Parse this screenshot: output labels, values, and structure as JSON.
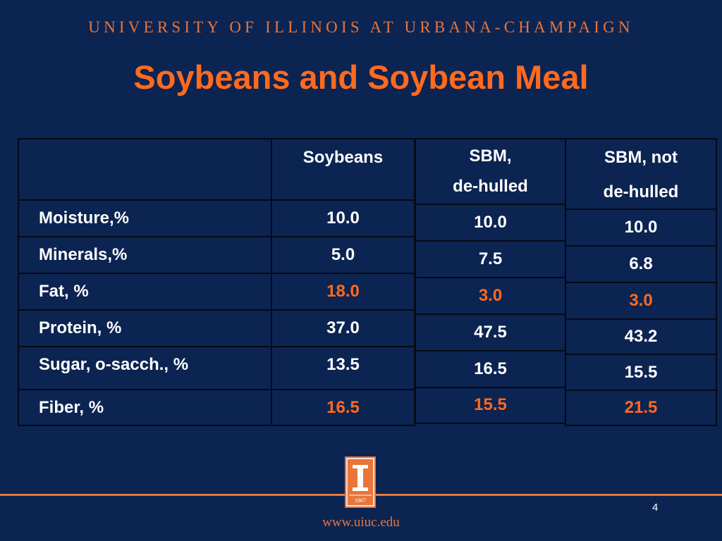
{
  "header": {
    "university": "UNIVERSITY OF ILLINOIS AT URBANA-CHAMPAIGN"
  },
  "slide": {
    "title": "Soybeans and Soybean Meal",
    "page_number": "4"
  },
  "table1": {
    "header": [
      "",
      "Soybeans"
    ],
    "rows": [
      [
        "Moisture,%",
        "10.0"
      ],
      [
        "Minerals,%",
        "5.0"
      ],
      [
        "Fat, %",
        "18.0"
      ],
      [
        "Protein, %",
        "37.0"
      ],
      [
        "Sugar, o-sacch., %",
        "13.5"
      ],
      [
        "Fiber, %",
        "16.5"
      ]
    ]
  },
  "table2": {
    "header_line1": "SBM,",
    "header_line2": "de-hulled",
    "values": [
      "10.0",
      "7.5",
      "3.0",
      "47.5",
      "16.5",
      "15.5"
    ]
  },
  "table3": {
    "header_line1": "SBM, not",
    "header_line2": "de-hulled",
    "values": [
      "10.0",
      "6.8",
      "3.0",
      "43.2",
      "15.5",
      "21.5"
    ]
  },
  "logo": {
    "year": "1867"
  },
  "footer": {
    "url": "www.uiuc.edu"
  },
  "colors": {
    "background": "#0c2452",
    "accent": "#ff6a1f",
    "text": "#ffffff"
  }
}
